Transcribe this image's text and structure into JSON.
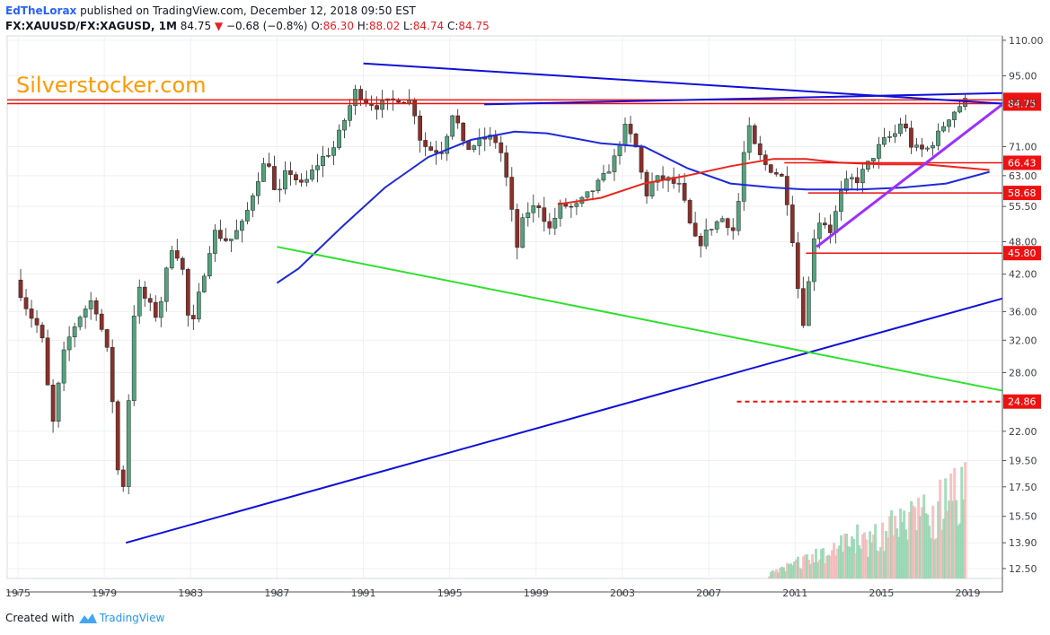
{
  "header": {
    "author": "EdTheLorax",
    "published": "published on TradingView.com, December 12, 2018 09:50 EST",
    "symbol": "FX:XAUUSD/FX:XAGUSD, 1M",
    "last": "84.75",
    "change": "−0.68 (−0.8%)",
    "o_label": "O:",
    "o": "86.30",
    "h_label": "H:",
    "h": "88.02",
    "l_label": "L:",
    "l": "84.74",
    "c_label": "C:",
    "c": "84.75"
  },
  "watermark": "Silverstocker.com",
  "footer": {
    "created": "Created with",
    "brand": "TradingView"
  },
  "colors": {
    "up": "#53a37e",
    "down": "#8b2f2a",
    "line_blue": "#1010d8",
    "line_green": "#2fe02f",
    "line_purple": "#9b30ff",
    "ma_blue": "#1e2ad8",
    "ma_red": "#e8261e",
    "level_red": "#ee1111",
    "watermark": "#ff9900"
  },
  "chart_data": {
    "type": "candlestick",
    "title": "FX:XAUUSD/FX:XAGUSD, 1M",
    "x_ticks": [
      "1975",
      "1979",
      "1983",
      "1987",
      "1991",
      "1995",
      "1999",
      "2003",
      "2007",
      "2011",
      "2015",
      "2019"
    ],
    "x_range": [
      1974.5,
      2020.6
    ],
    "y_scale": "log",
    "y_range": [
      12.0,
      112.0
    ],
    "y_ticks": [
      "110.00",
      "95.00",
      "85.00",
      "71.00",
      "63.00",
      "55.50",
      "48.00",
      "42.00",
      "36.00",
      "32.00",
      "28.00",
      "22.00",
      "19.50",
      "17.50",
      "15.50",
      "13.90",
      "12.50"
    ],
    "price_labels": [
      {
        "value": 86.07,
        "label": "86.07",
        "style": "solid"
      },
      {
        "value": 84.75,
        "label": "84.75",
        "style": "solid"
      },
      {
        "value": 66.43,
        "label": "66.43",
        "style": "solid"
      },
      {
        "value": 58.68,
        "label": "58.68",
        "style": "solid"
      },
      {
        "value": 45.8,
        "label": "45.80",
        "style": "solid"
      },
      {
        "value": 24.86,
        "label": "24.86",
        "style": "dashed"
      }
    ],
    "anchors": [
      [
        1975.0,
        41
      ],
      [
        1975.6,
        36
      ],
      [
        1976.2,
        33
      ],
      [
        1976.7,
        22
      ],
      [
        1977.3,
        31
      ],
      [
        1977.9,
        35
      ],
      [
        1978.6,
        38
      ],
      [
        1979.3,
        30
      ],
      [
        1979.9,
        15
      ],
      [
        1980.2,
        23
      ],
      [
        1980.6,
        40
      ],
      [
        1981.0,
        38
      ],
      [
        1981.6,
        35
      ],
      [
        1982.3,
        48
      ],
      [
        1982.8,
        42
      ],
      [
        1983.1,
        32
      ],
      [
        1983.6,
        40
      ],
      [
        1984.2,
        50
      ],
      [
        1984.9,
        48
      ],
      [
        1985.6,
        52
      ],
      [
        1986.2,
        62
      ],
      [
        1986.7,
        68
      ],
      [
        1987.1,
        56
      ],
      [
        1987.6,
        65
      ],
      [
        1988.3,
        60
      ],
      [
        1989.1,
        67
      ],
      [
        1989.8,
        71
      ],
      [
        1990.4,
        82
      ],
      [
        1990.8,
        90
      ],
      [
        1991.2,
        86
      ],
      [
        1991.8,
        84
      ],
      [
        1992.3,
        85
      ],
      [
        1992.8,
        87
      ],
      [
        1993.4,
        85
      ],
      [
        1993.8,
        72
      ],
      [
        1994.3,
        70
      ],
      [
        1994.8,
        70
      ],
      [
        1995.3,
        83
      ],
      [
        1995.8,
        70
      ],
      [
        1996.4,
        72
      ],
      [
        1996.9,
        74
      ],
      [
        1997.4,
        72
      ],
      [
        1997.9,
        58
      ],
      [
        1998.2,
        46
      ],
      [
        1998.6,
        54
      ],
      [
        1999.3,
        56
      ],
      [
        1999.7,
        50
      ],
      [
        2000.3,
        56
      ],
      [
        2000.9,
        55
      ],
      [
        2001.5,
        58
      ],
      [
        2002.2,
        62
      ],
      [
        2002.8,
        68
      ],
      [
        2003.2,
        77
      ],
      [
        2003.7,
        72
      ],
      [
        2004.2,
        58
      ],
      [
        2004.6,
        62
      ],
      [
        2005.2,
        62
      ],
      [
        2005.8,
        60
      ],
      [
        2006.2,
        52
      ],
      [
        2006.6,
        47
      ],
      [
        2007.2,
        51
      ],
      [
        2007.8,
        53
      ],
      [
        2008.3,
        50
      ],
      [
        2008.6,
        60
      ],
      [
        2008.9,
        78
      ],
      [
        2009.3,
        70
      ],
      [
        2009.7,
        66
      ],
      [
        2010.2,
        64
      ],
      [
        2010.6,
        62
      ],
      [
        2010.9,
        52
      ],
      [
        2011.2,
        42
      ],
      [
        2011.4,
        33
      ],
      [
        2011.7,
        38
      ],
      [
        2011.9,
        48
      ],
      [
        2012.3,
        53
      ],
      [
        2012.8,
        50
      ],
      [
        2013.2,
        58
      ],
      [
        2013.6,
        62
      ],
      [
        2014.0,
        62
      ],
      [
        2014.4,
        65
      ],
      [
        2014.9,
        70
      ],
      [
        2015.3,
        73
      ],
      [
        2015.8,
        75
      ],
      [
        2016.1,
        80
      ],
      [
        2016.4,
        72
      ],
      [
        2016.8,
        70
      ],
      [
        2017.2,
        70
      ],
      [
        2017.7,
        74
      ],
      [
        2018.2,
        80
      ],
      [
        2018.6,
        83
      ],
      [
        2018.95,
        85.5
      ]
    ],
    "lines": [
      {
        "name": "",
        "color": "blue",
        "from": [
          1991.0,
          100
        ],
        "to": [
          2020.6,
          84.75
        ]
      },
      {
        "name": "",
        "color": "blue",
        "from": [
          1996.6,
          84.5
        ],
        "to": [
          2020.6,
          88.5
        ]
      },
      {
        "name": "",
        "color": "blue",
        "from": [
          1980.0,
          13.9
        ],
        "to": [
          2020.6,
          38
        ]
      },
      {
        "name": "",
        "color": "green",
        "from": [
          1987.0,
          47
        ],
        "to": [
          2020.6,
          26
        ]
      },
      {
        "name": "",
        "color": "purple",
        "from": [
          2012.0,
          47
        ],
        "to": [
          2020.6,
          84.5
        ]
      }
    ],
    "moving_averages": [
      {
        "color": "blue",
        "points": [
          [
            1987.0,
            40.5
          ],
          [
            1988.0,
            43
          ],
          [
            1990.0,
            51
          ],
          [
            1992.0,
            60
          ],
          [
            1994.0,
            68
          ],
          [
            1996.0,
            73
          ],
          [
            1998.0,
            75.5
          ],
          [
            1999.5,
            75
          ],
          [
            2002.0,
            72
          ],
          [
            2004.0,
            71
          ],
          [
            2006.0,
            65
          ],
          [
            2008.0,
            61
          ],
          [
            2010.0,
            60
          ],
          [
            2011.5,
            59.5
          ],
          [
            2014.0,
            59.5
          ],
          [
            2016.0,
            60
          ],
          [
            2018.0,
            61
          ],
          [
            2020.0,
            64
          ]
        ]
      },
      {
        "color": "red",
        "points": [
          [
            2000.0,
            56
          ],
          [
            2002.0,
            57.5
          ],
          [
            2004.0,
            61
          ],
          [
            2006.0,
            63
          ],
          [
            2008.0,
            65.5
          ],
          [
            2010.0,
            67.5
          ],
          [
            2011.5,
            67.5
          ],
          [
            2013.0,
            66.5
          ],
          [
            2015.0,
            66
          ],
          [
            2017.0,
            66
          ],
          [
            2019.0,
            65
          ],
          [
            2020.0,
            64.5
          ]
        ]
      }
    ],
    "legend": "none",
    "grid": true
  }
}
